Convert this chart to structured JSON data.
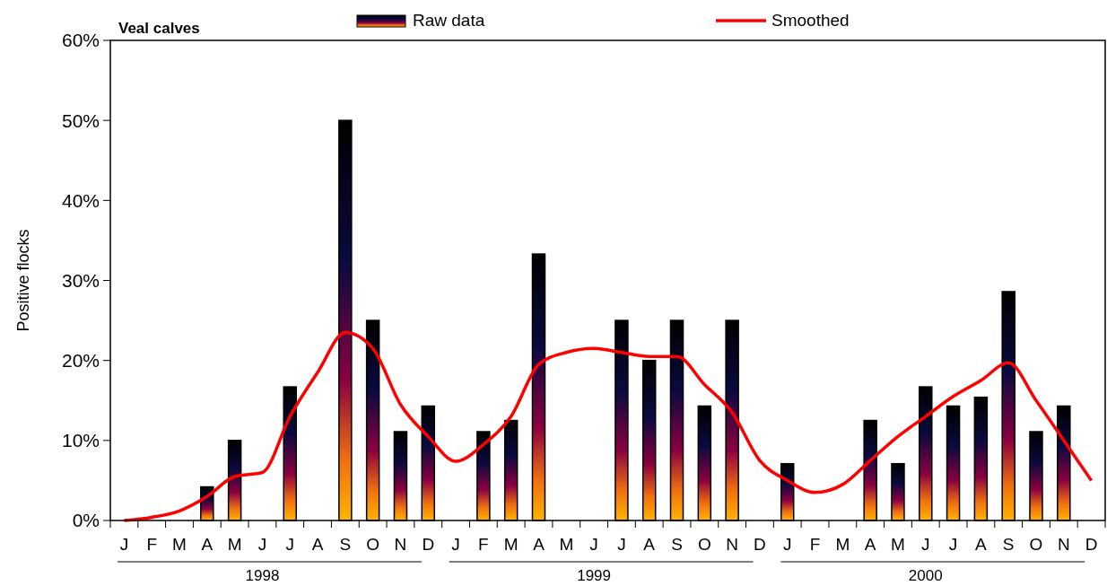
{
  "chart_data": {
    "type": "bar",
    "title": "Veal calves",
    "ylabel": "Positive flocks",
    "categories": [
      "J",
      "F",
      "M",
      "A",
      "M",
      "J",
      "J",
      "A",
      "S",
      "O",
      "N",
      "D",
      "J",
      "F",
      "M",
      "A",
      "M",
      "J",
      "J",
      "A",
      "S",
      "O",
      "N",
      "D",
      "J",
      "F",
      "M",
      "A",
      "M",
      "J",
      "J",
      "A",
      "S",
      "O",
      "N",
      "D"
    ],
    "series": [
      {
        "name": "Raw  data",
        "color": "#000000",
        "values": [
          0,
          0,
          0,
          4.2,
          10,
          0,
          16.7,
          0,
          50,
          25,
          11.1,
          14.3,
          0,
          11.1,
          12.5,
          33.3,
          0,
          0,
          25,
          20,
          25,
          14.3,
          25,
          0,
          7.1,
          0,
          0,
          12.5,
          7.1,
          16.7,
          14.3,
          15.4,
          28.6,
          11.1,
          14.3,
          0
        ]
      },
      {
        "name": "Smoothed",
        "type": "line",
        "color": "#ff0000",
        "values": [
          0,
          0.4,
          1.2,
          3.0,
          5.5,
          6.0,
          13,
          18.5,
          23.5,
          21.5,
          14.5,
          10.5,
          7.4,
          9.5,
          13,
          19.5,
          21,
          21.5,
          21,
          20.5,
          20.5,
          17,
          13.5,
          7.5,
          5,
          3.5,
          4.5,
          7.5,
          10.5,
          13,
          15.5,
          17.5,
          19.7,
          15,
          10,
          5
        ]
      }
    ],
    "annotations": [
      "1998",
      "1999",
      "2000"
    ],
    "ylim": [
      0,
      60
    ],
    "yticks": [
      {
        "value": 0,
        "label": "0%"
      },
      {
        "value": 10,
        "label": "10%"
      },
      {
        "value": 20,
        "label": "20%"
      },
      {
        "value": 30,
        "label": "30%"
      },
      {
        "value": 40,
        "label": "40%"
      },
      {
        "value": 50,
        "label": "50%"
      },
      {
        "value": 60,
        "label": "60%"
      }
    ],
    "legend": "top",
    "grid": false
  }
}
